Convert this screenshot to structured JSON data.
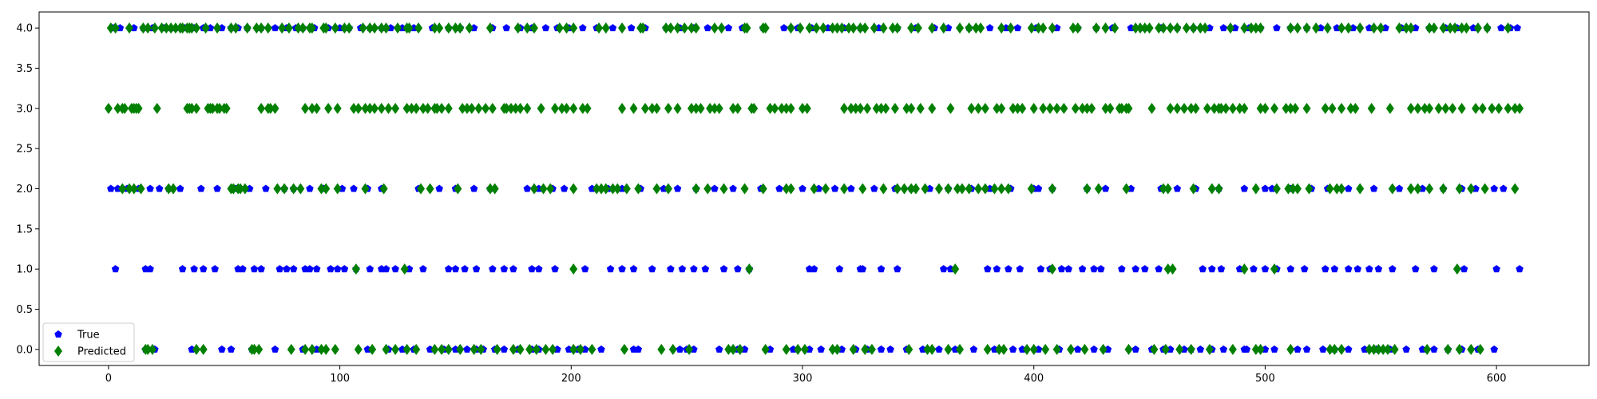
{
  "chart_data": {
    "type": "scatter",
    "title": "",
    "xlabel": "",
    "ylabel": "",
    "xlim": [
      -30,
      640
    ],
    "ylim": [
      -0.2,
      4.2
    ],
    "x_ticks": [
      0,
      100,
      200,
      300,
      400,
      500,
      600
    ],
    "x_tick_labels": [
      "0",
      "100",
      "200",
      "300",
      "400",
      "500",
      "600"
    ],
    "y_ticks": [
      0.0,
      0.5,
      1.0,
      1.5,
      2.0,
      2.5,
      3.0,
      3.5,
      4.0
    ],
    "y_tick_labels": [
      "0.0",
      "0.5",
      "1.0",
      "1.5",
      "2.0",
      "2.5",
      "3.0",
      "3.5",
      "4.0"
    ],
    "grid": false,
    "legend_position": "lower-left",
    "series": [
      {
        "name": "True",
        "marker": "pentagon",
        "color": "#0000ff",
        "points": [
          {
            "y": 4,
            "x": [
              2,
              5,
              11,
              15,
              19,
              24,
              27,
              29,
              33,
              37,
              41,
              44,
              49,
              53,
              56,
              60,
              66,
              72,
              77,
              81,
              84,
              89,
              95,
              100,
              104,
              109,
              113,
              118,
              122,
              127,
              132,
              140,
              147,
              152,
              158,
              166,
              172,
              178,
              183,
              189,
              194,
              199,
              205,
              211,
              218,
              226,
              232,
              241,
              247,
              253,
              259,
              268,
              274,
              283,
              292,
              298,
              304,
              311,
              318,
              325,
              333,
              341,
              349,
              357,
              363,
              372,
              381,
              388,
              393,
              401,
              410,
              419,
              427,
              434,
              442,
              448,
              455,
              462,
              469,
              476,
              482,
              487,
              493,
              498,
              505,
              511,
              518,
              524,
              531,
              538,
              545,
              552,
              559,
              565,
              571,
              578,
              583,
              590,
              596,
              602,
              606,
              609
            ]
          },
          {
            "y": 2,
            "x": [
              1,
              4,
              8,
              13,
              18,
              22,
              26,
              31,
              40,
              47,
              55,
              61,
              68,
              76,
              80,
              87,
              93,
              101,
              106,
              112,
              118,
              134,
              143,
              150,
              158,
              165,
              181,
              186,
              192,
              197,
              209,
              216,
              222,
              230,
              240,
              246,
              254,
              262,
              270,
              282,
              290,
              300,
              307,
              314,
              321,
              331,
              340,
              347,
              355,
              363,
              373,
              381,
              390,
              400,
              402,
              408,
              423,
              431,
              442,
              455,
              462,
              470,
              480,
              491,
              500,
              503,
              511,
              520,
              527,
              536,
              547,
              558,
              568,
              577,
              585,
              591,
              599,
              603
            ]
          },
          {
            "y": 1,
            "x": [
              3,
              16,
              18,
              32,
              37,
              41,
              46,
              56,
              58,
              63,
              66,
              74,
              77,
              80,
              85,
              87,
              90,
              96,
              99,
              102,
              107,
              113,
              118,
              120,
              124,
              130,
              136,
              147,
              150,
              154,
              159,
              166,
              171,
              175,
              183,
              186,
              193,
              206,
              217,
              222,
              227,
              235,
              243,
              248,
              253,
              258,
              266,
              272,
              277,
              303,
              305,
              316,
              325,
              326,
              334,
              341,
              361,
              364,
              380,
              384,
              389,
              394,
              403,
              407,
              412,
              415,
              421,
              426,
              429,
              438,
              444,
              448,
              454,
              473,
              477,
              481,
              489,
              495,
              500,
              505,
              511,
              517,
              526,
              530,
              536,
              540,
              545,
              549,
              555,
              565,
              573,
              586,
              600,
              610
            ]
          },
          {
            "y": 0,
            "x": [
              16,
              20,
              36,
              49,
              53,
              62,
              72,
              84,
              90,
              112,
              121,
              127,
              132,
              139,
              145,
              150,
              155,
              159,
              162,
              167,
              171,
              177,
              183,
              186,
              194,
              199,
              203,
              206,
              213,
              227,
              229,
              247,
              250,
              253,
              264,
              272,
              275,
              286,
              296,
              303,
              308,
              317,
              323,
              328,
              334,
              338,
              345,
              352,
              359,
              366,
              374,
              383,
              391,
              395,
              402,
              411,
              419,
              426,
              432,
              444,
              451,
              456,
              459,
              465,
              468,
              472,
              477,
              482,
              491,
              492,
              500,
              504,
              514,
              518,
              525,
              530,
              536,
              543,
              548,
              554,
              561,
              568,
              573,
              579,
              585,
              592,
              599
            ]
          }
        ]
      },
      {
        "name": "Predicted",
        "marker": "thin_diamond",
        "color": "#008000",
        "points": [
          {
            "y": 4,
            "x": [
              1,
              3,
              9,
              15,
              17,
              20,
              23,
              25,
              27,
              29,
              31,
              32,
              34,
              35,
              36,
              38,
              42,
              47,
              53,
              55,
              60,
              64,
              66,
              69,
              75,
              78,
              82,
              84,
              87,
              88,
              93,
              94,
              98,
              102,
              104,
              110,
              113,
              115,
              118,
              120,
              125,
              129,
              130,
              134,
              141,
              143,
              147,
              150,
              152,
              156,
              165,
              177,
              181,
              184,
              195,
              198,
              201,
              212,
              215,
              222,
              230,
              231,
              241,
              243,
              246,
              249,
              252,
              254,
              262,
              265,
              275,
              276,
              283,
              284,
              295,
              299,
              303,
              306,
              309,
              313,
              315,
              317,
              320,
              322,
              325,
              327,
              331,
              335,
              339,
              341,
              347,
              350,
              356,
              361,
              368,
              372,
              375,
              377,
              386,
              390,
              399,
              402,
              404,
              408,
              417,
              419,
              427,
              431,
              435,
              444,
              446,
              448,
              450,
              454,
              456,
              459,
              462,
              466,
              469,
              472,
              474,
              485,
              491,
              494,
              496,
              498,
              511,
              514,
              518,
              522,
              527,
              533,
              536,
              541,
              547,
              550,
              558,
              561,
              563,
              571,
              573,
              577,
              580,
              582,
              585,
              587,
              592,
              596,
              605
            ]
          },
          {
            "y": 3,
            "x": [
              0,
              4,
              6,
              7,
              10,
              11,
              12,
              13,
              21,
              34,
              35,
              36,
              38,
              43,
              44,
              45,
              47,
              48,
              50,
              51,
              66,
              69,
              70,
              72,
              85,
              88,
              90,
              95,
              99,
              106,
              108,
              111,
              113,
              115,
              118,
              121,
              124,
              129,
              131,
              133,
              136,
              138,
              141,
              142,
              144,
              147,
              153,
              155,
              157,
              160,
              163,
              166,
              171,
              172,
              174,
              176,
              178,
              181,
              187,
              193,
              196,
              198,
              201,
              205,
              207,
              222,
              227,
              232,
              235,
              237,
              242,
              246,
              252,
              254,
              256,
              260,
              262,
              264,
              270,
              272,
              278,
              279,
              286,
              288,
              291,
              293,
              295,
              300,
              302,
              318,
              321,
              323,
              325,
              328,
              332,
              334,
              336,
              340,
              345,
              347,
              351,
              356,
              364,
              373,
              376,
              379,
              384,
              386,
              391,
              393,
              395,
              400,
              404,
              407,
              410,
              413,
              418,
              421,
              423,
              425,
              431,
              433,
              437,
              438,
              440,
              441,
              451,
              459,
              462,
              465,
              468,
              470,
              475,
              478,
              480,
              481,
              483,
              486,
              489,
              491,
              498,
              500,
              504,
              509,
              511,
              513,
              518,
              526,
              529,
              533,
              537,
              539,
              546,
              554,
              563,
              566,
              569,
              571,
              575,
              578,
              581,
              585,
              591,
              594,
              598,
              601,
              605,
              608,
              610
            ]
          },
          {
            "y": 2,
            "x": [
              6,
              9,
              11,
              14,
              26,
              28,
              53,
              54,
              56,
              57,
              59,
              73,
              76,
              80,
              83,
              92,
              94,
              99,
              111,
              119,
              135,
              139,
              151,
              165,
              167,
              184,
              188,
              191,
              201,
              211,
              213,
              215,
              218,
              220,
              224,
              229,
              237,
              242,
              254,
              259,
              266,
              275,
              283,
              293,
              295,
              305,
              310,
              318,
              326,
              335,
              341,
              344,
              347,
              349,
              353,
              359,
              363,
              367,
              369,
              372,
              376,
              379,
              383,
              386,
              389,
              399,
              408,
              423,
              428,
              440,
              456,
              458,
              469,
              477,
              480,
              496,
              505,
              510,
              512,
              514,
              519,
              528,
              531,
              533,
              541,
              555,
              563,
              566,
              571,
              577,
              584,
              589,
              595,
              608
            ]
          },
          {
            "y": 1,
            "x": [
              107,
              128,
              201,
              277,
              366,
              408,
              458,
              460,
              491,
              504,
              583
            ]
          },
          {
            "y": 0,
            "x": [
              16,
              17,
              19,
              38,
              41,
              62,
              63,
              65,
              79,
              85,
              88,
              92,
              94,
              98,
              108,
              114,
              120,
              124,
              129,
              133,
              141,
              144,
              147,
              152,
              158,
              161,
              168,
              175,
              178,
              182,
              185,
              189,
              192,
              201,
              204,
              209,
              223,
              239,
              244,
              251,
              268,
              270,
              273,
              284,
              293,
              298,
              301,
              313,
              315,
              322,
              327,
              330,
              346,
              354,
              356,
              363,
              368,
              380,
              385,
              387,
              397,
              400,
              405,
              410,
              416,
              422,
              430,
              441,
              452,
              457,
              463,
              468,
              476,
              486,
              496,
              498,
              511,
              528,
              530,
              533,
              545,
              547,
              549,
              551,
              553,
              556,
              570,
              579,
              584,
              589,
              593
            ]
          }
        ]
      }
    ]
  }
}
